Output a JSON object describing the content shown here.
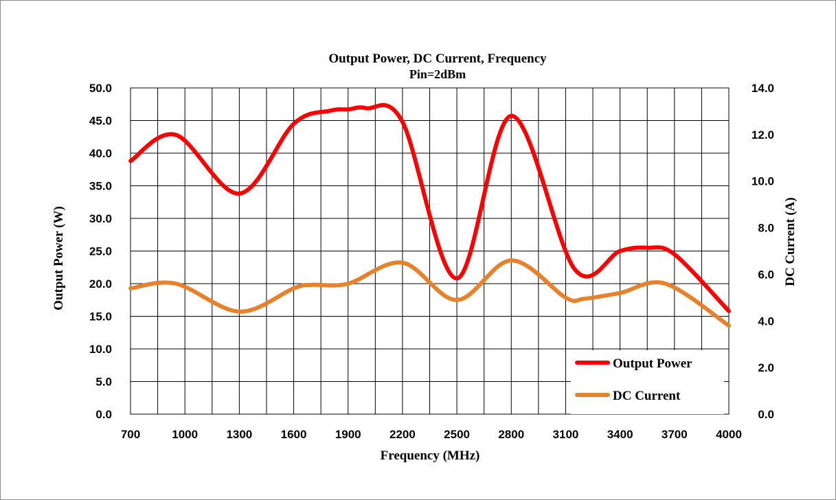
{
  "chart_data": {
    "type": "line",
    "title": "Output Power, DC  Current,  Frequency",
    "subtitle": "Pin=2dBm",
    "xlabel": "Frequency (MHz)",
    "ylabel": "Output Power (W)",
    "y2label": "DC Current (A)",
    "x_tick_labels": [
      "700",
      "1000",
      "1300",
      "1600",
      "1900",
      "2200",
      "2500",
      "2800",
      "3100",
      "3400",
      "3700",
      "4000"
    ],
    "y_tick_labels": [
      "0.0",
      "5.0",
      "10.0",
      "15.0",
      "20.0",
      "25.0",
      "30.0",
      "35.0",
      "40.0",
      "45.0",
      "50.0"
    ],
    "y2_tick_labels": [
      "0.0",
      "2.0",
      "4.0",
      "6.0",
      "8.0",
      "10.0",
      "12.0",
      "14.0"
    ],
    "xlim": [
      700,
      4000
    ],
    "ylim": [
      0,
      50
    ],
    "y2lim": [
      0,
      14
    ],
    "grid": true,
    "legend_position": "bottom-right",
    "series": [
      {
        "name": "Output Power",
        "axis": "left",
        "color": "#ff0000",
        "x": [
          700,
          950,
          1300,
          1600,
          1800,
          1900,
          2000,
          2200,
          2500,
          2800,
          3150,
          3400,
          3550,
          3700,
          4000
        ],
        "y": [
          38.8,
          42.8,
          33.8,
          44.5,
          46.5,
          46.7,
          46.9,
          44.8,
          20.8,
          45.7,
          22.2,
          25.0,
          25.5,
          24.5,
          15.8
        ]
      },
      {
        "name": "DC Current",
        "axis": "right",
        "color": "#e8822a",
        "x": [
          700,
          950,
          1300,
          1600,
          1700,
          1900,
          2200,
          2500,
          2800,
          3100,
          3200,
          3400,
          3650,
          4000
        ],
        "y": [
          5.4,
          5.6,
          4.4,
          5.4,
          5.55,
          5.6,
          6.5,
          4.9,
          6.6,
          5.0,
          4.95,
          5.2,
          5.6,
          3.8
        ]
      }
    ]
  }
}
